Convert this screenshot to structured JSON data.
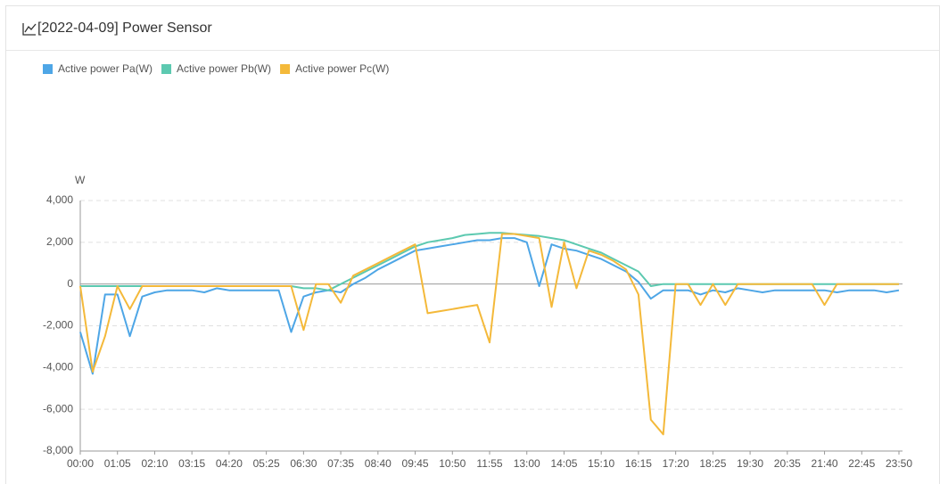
{
  "header": {
    "title": "[2022-04-09] Power Sensor"
  },
  "chart_data": {
    "type": "line",
    "y_label": "W",
    "categories": [
      "00:00",
      null,
      null,
      "01:05",
      null,
      null,
      "02:10",
      null,
      null,
      "03:15",
      null,
      null,
      "04:20",
      null,
      null,
      "05:25",
      null,
      null,
      "06:30",
      null,
      null,
      "07:35",
      null,
      null,
      "08:40",
      null,
      null,
      "09:45",
      null,
      null,
      "10:50",
      null,
      null,
      "11:55",
      null,
      null,
      "13:00",
      null,
      null,
      "14:05",
      null,
      null,
      "15:10",
      null,
      null,
      "16:15",
      null,
      null,
      "17:20",
      null,
      null,
      "18:25",
      null,
      null,
      "19:30",
      null,
      null,
      "20:35",
      null,
      null,
      "21:40",
      null,
      null,
      "22:45",
      null,
      null,
      "23:50"
    ],
    "series": [
      {
        "name": "Active power Pa(W)",
        "color": "#4ea6e6",
        "values": [
          -2300,
          -4300,
          -500,
          -500,
          -2500,
          -600,
          -400,
          -300,
          -300,
          -300,
          -400,
          -200,
          -300,
          -300,
          -300,
          -300,
          -300,
          -2300,
          -600,
          -400,
          -300,
          -400,
          0,
          300,
          700,
          1000,
          1300,
          1600,
          1700,
          1800,
          1900,
          2000,
          2100,
          2100,
          2200,
          2200,
          2000,
          -100,
          1900,
          1700,
          1600,
          1400,
          1200,
          900,
          600,
          100,
          -700,
          -300,
          -300,
          -300,
          -500,
          -300,
          -400,
          -200,
          -300,
          -400,
          -300,
          -300,
          -300,
          -300,
          -300,
          -400,
          -300,
          -300,
          -300,
          -400,
          -300
        ]
      },
      {
        "name": "Active power Pb(W)",
        "color": "#5cc9b0",
        "values": [
          -100,
          -100,
          -100,
          -100,
          -100,
          -100,
          -100,
          -100,
          -100,
          -100,
          -100,
          -100,
          -100,
          -100,
          -100,
          -100,
          -100,
          -100,
          -200,
          -200,
          -300,
          0,
          300,
          600,
          900,
          1200,
          1500,
          1800,
          2000,
          2100,
          2200,
          2350,
          2400,
          2450,
          2450,
          2400,
          2350,
          2300,
          2200,
          2100,
          1900,
          1700,
          1500,
          1200,
          900,
          600,
          -100,
          0,
          0,
          0,
          0,
          0,
          0,
          0,
          0,
          0,
          0,
          0,
          0,
          0,
          0,
          0,
          0,
          0,
          0,
          0,
          0
        ]
      },
      {
        "name": "Active power Pc(W)",
        "color": "#f4b93a",
        "values": [
          -100,
          -4200,
          -2500,
          -100,
          -1200,
          -100,
          -100,
          -100,
          -100,
          -100,
          -100,
          -100,
          -100,
          -100,
          -100,
          -100,
          -100,
          -100,
          -2200,
          0,
          0,
          -900,
          400,
          700,
          1000,
          1300,
          1600,
          1900,
          -1400,
          -1300,
          -1200,
          -1100,
          -1000,
          -2800,
          2400,
          2400,
          2300,
          2200,
          -1100,
          2000,
          -200,
          1600,
          1400,
          1100,
          700,
          -500,
          -6500,
          -7200,
          0,
          0,
          -1000,
          0,
          -1000,
          0,
          0,
          0,
          0,
          0,
          0,
          0,
          -1000,
          0,
          0,
          0,
          0,
          0,
          0
        ]
      }
    ],
    "ylim": [
      -8000,
      4000
    ],
    "yticks": [
      {
        "value": -8000,
        "label": "-8,000"
      },
      {
        "value": -6000,
        "label": "-6,000"
      },
      {
        "value": -4000,
        "label": "-4,000"
      },
      {
        "value": -2000,
        "label": "-2,000"
      },
      0,
      {
        "value": 2000,
        "label": "2,000"
      },
      {
        "value": 4000,
        "label": "4,000"
      }
    ],
    "grid": true,
    "legend": "top-left"
  }
}
